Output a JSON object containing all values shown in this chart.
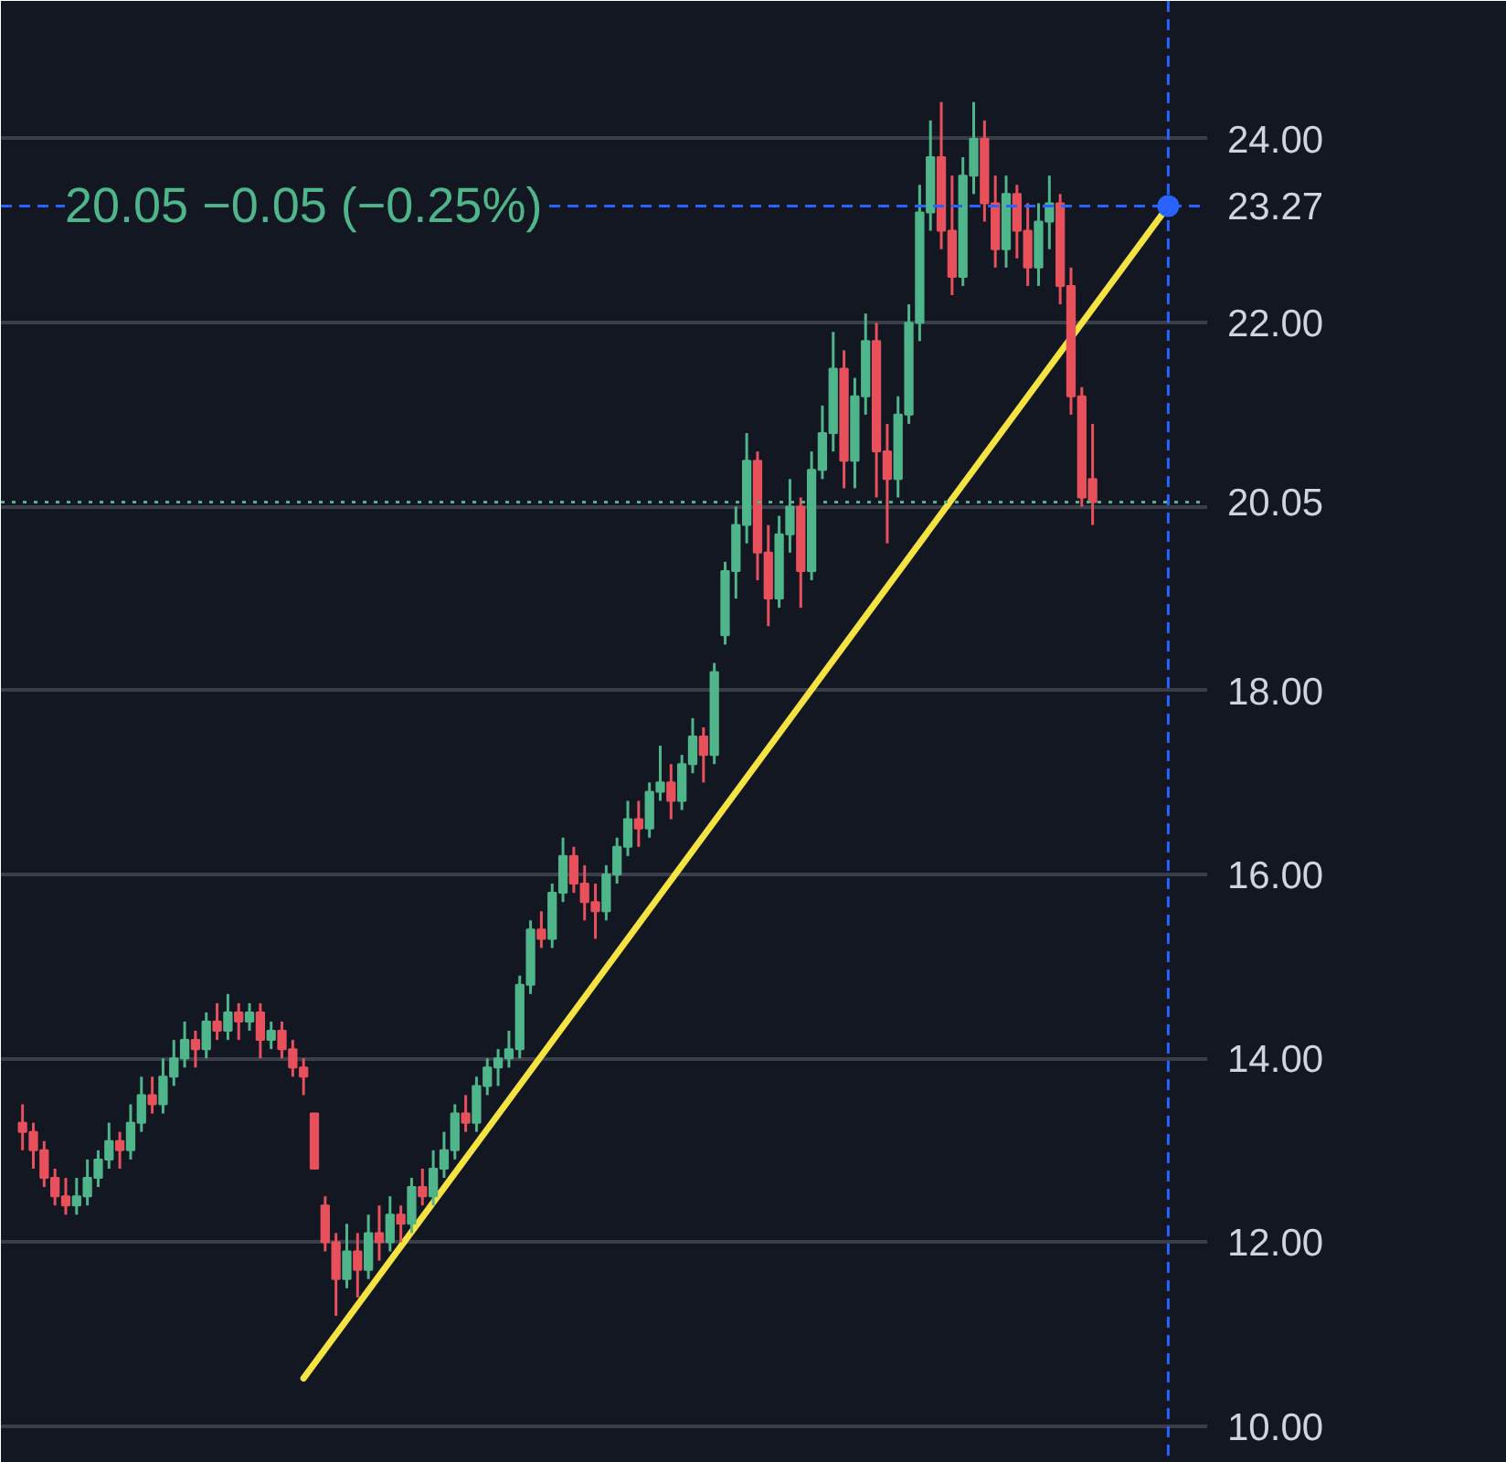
{
  "chart_data": {
    "type": "candlestick",
    "categories": [
      null,
      null,
      null,
      null,
      null,
      null,
      null,
      null,
      null,
      null,
      null,
      null,
      null,
      null,
      null,
      null,
      null,
      null,
      null,
      null,
      null,
      null,
      null,
      null,
      null,
      null,
      null,
      null,
      null,
      null,
      null,
      null,
      null,
      null,
      null,
      null,
      null,
      null,
      null,
      null,
      null,
      null,
      null,
      null,
      null,
      null,
      null,
      null,
      null,
      null,
      null,
      null,
      null,
      null,
      null,
      null,
      null,
      null,
      null,
      null,
      null,
      null,
      null,
      null,
      null,
      null,
      null,
      null,
      null,
      null,
      null,
      null,
      null,
      null,
      null,
      null,
      null,
      null,
      null,
      null,
      null,
      null,
      null,
      null,
      null,
      null,
      null,
      null,
      null,
      null,
      null,
      null,
      null,
      null,
      null,
      null,
      null,
      null,
      null,
      null,
      null,
      null,
      null,
      null,
      null,
      null,
      null,
      null,
      null,
      null
    ],
    "ohlc": [
      [
        13.3,
        13.5,
        13.0,
        13.2
      ],
      [
        13.2,
        13.3,
        12.8,
        13.0
      ],
      [
        13.0,
        13.1,
        12.6,
        12.7
      ],
      [
        12.7,
        12.8,
        12.4,
        12.5
      ],
      [
        12.5,
        12.7,
        12.3,
        12.4
      ],
      [
        12.4,
        12.7,
        12.3,
        12.5
      ],
      [
        12.5,
        12.9,
        12.4,
        12.7
      ],
      [
        12.7,
        13.0,
        12.6,
        12.9
      ],
      [
        12.9,
        13.3,
        12.8,
        13.1
      ],
      [
        13.1,
        13.2,
        12.8,
        13.0
      ],
      [
        13.0,
        13.5,
        12.9,
        13.3
      ],
      [
        13.3,
        13.8,
        13.2,
        13.6
      ],
      [
        13.6,
        13.8,
        13.4,
        13.5
      ],
      [
        13.5,
        14.0,
        13.4,
        13.8
      ],
      [
        13.8,
        14.2,
        13.7,
        14.0
      ],
      [
        14.0,
        14.4,
        13.9,
        14.2
      ],
      [
        14.2,
        14.3,
        13.9,
        14.1
      ],
      [
        14.1,
        14.5,
        14.0,
        14.4
      ],
      [
        14.4,
        14.6,
        14.2,
        14.3
      ],
      [
        14.3,
        14.7,
        14.2,
        14.5
      ],
      [
        14.5,
        14.6,
        14.2,
        14.4
      ],
      [
        14.4,
        14.6,
        14.3,
        14.5
      ],
      [
        14.5,
        14.6,
        14.0,
        14.2
      ],
      [
        14.2,
        14.4,
        14.1,
        14.3
      ],
      [
        14.3,
        14.4,
        14.0,
        14.1
      ],
      [
        14.1,
        14.2,
        13.8,
        13.9
      ],
      [
        13.9,
        14.0,
        13.6,
        13.8
      ],
      [
        13.4,
        13.4,
        12.8,
        12.8
      ],
      [
        12.4,
        12.5,
        11.9,
        12.0
      ],
      [
        12.0,
        12.1,
        11.2,
        11.6
      ],
      [
        11.6,
        12.2,
        11.5,
        11.9
      ],
      [
        11.9,
        12.1,
        11.4,
        11.7
      ],
      [
        11.7,
        12.3,
        11.6,
        12.1
      ],
      [
        12.1,
        12.4,
        11.8,
        12.0
      ],
      [
        12.0,
        12.5,
        11.9,
        12.3
      ],
      [
        12.3,
        12.4,
        12.0,
        12.2
      ],
      [
        12.2,
        12.7,
        12.1,
        12.6
      ],
      [
        12.6,
        12.8,
        12.4,
        12.5
      ],
      [
        12.5,
        13.0,
        12.4,
        12.8
      ],
      [
        12.8,
        13.2,
        12.7,
        13.0
      ],
      [
        13.0,
        13.5,
        12.9,
        13.4
      ],
      [
        13.4,
        13.6,
        13.2,
        13.3
      ],
      [
        13.3,
        13.8,
        13.2,
        13.7
      ],
      [
        13.7,
        14.0,
        13.6,
        13.9
      ],
      [
        13.9,
        14.1,
        13.7,
        14.0
      ],
      [
        14.0,
        14.3,
        13.9,
        14.1
      ],
      [
        14.1,
        14.9,
        14.0,
        14.8
      ],
      [
        14.8,
        15.5,
        14.7,
        15.4
      ],
      [
        15.4,
        15.6,
        15.2,
        15.3
      ],
      [
        15.3,
        15.9,
        15.2,
        15.8
      ],
      [
        15.8,
        16.4,
        15.7,
        16.2
      ],
      [
        16.2,
        16.3,
        15.8,
        15.9
      ],
      [
        15.9,
        16.1,
        15.5,
        15.7
      ],
      [
        15.7,
        15.9,
        15.3,
        15.6
      ],
      [
        15.6,
        16.1,
        15.5,
        16.0
      ],
      [
        16.0,
        16.4,
        15.9,
        16.3
      ],
      [
        16.3,
        16.8,
        16.2,
        16.6
      ],
      [
        16.6,
        16.8,
        16.3,
        16.5
      ],
      [
        16.5,
        17.0,
        16.4,
        16.9
      ],
      [
        16.9,
        17.4,
        16.8,
        17.0
      ],
      [
        17.0,
        17.2,
        16.6,
        16.8
      ],
      [
        16.8,
        17.3,
        16.7,
        17.2
      ],
      [
        17.2,
        17.7,
        17.1,
        17.5
      ],
      [
        17.5,
        17.6,
        17.0,
        17.3
      ],
      [
        17.3,
        18.3,
        17.2,
        18.2
      ],
      [
        18.6,
        19.4,
        18.5,
        19.3
      ],
      [
        19.3,
        20.0,
        19.0,
        19.8
      ],
      [
        19.8,
        20.8,
        19.6,
        20.5
      ],
      [
        20.5,
        20.6,
        19.2,
        19.5
      ],
      [
        19.5,
        19.8,
        18.7,
        19.0
      ],
      [
        19.0,
        19.9,
        18.9,
        19.7
      ],
      [
        19.7,
        20.3,
        19.5,
        20.0
      ],
      [
        20.0,
        20.1,
        18.9,
        19.3
      ],
      [
        19.3,
        20.6,
        19.2,
        20.4
      ],
      [
        20.4,
        21.1,
        20.3,
        20.8
      ],
      [
        20.8,
        21.9,
        20.6,
        21.5
      ],
      [
        21.5,
        21.7,
        20.2,
        20.5
      ],
      [
        20.5,
        21.4,
        20.2,
        21.2
      ],
      [
        21.2,
        22.1,
        21.0,
        21.8
      ],
      [
        21.8,
        22.0,
        20.1,
        20.6
      ],
      [
        20.6,
        20.9,
        19.6,
        20.3
      ],
      [
        20.3,
        21.2,
        20.1,
        21.0
      ],
      [
        21.0,
        22.2,
        20.9,
        22.0
      ],
      [
        22.0,
        23.5,
        21.8,
        23.2
      ],
      [
        23.2,
        24.2,
        23.0,
        23.8
      ],
      [
        23.8,
        24.4,
        22.8,
        23.0
      ],
      [
        23.0,
        23.6,
        22.3,
        22.5
      ],
      [
        22.5,
        23.8,
        22.4,
        23.6
      ],
      [
        23.6,
        24.4,
        23.4,
        24.0
      ],
      [
        24.0,
        24.2,
        23.1,
        23.3
      ],
      [
        23.3,
        23.6,
        22.6,
        22.8
      ],
      [
        22.8,
        23.6,
        22.6,
        23.4
      ],
      [
        23.4,
        23.5,
        22.7,
        23.0
      ],
      [
        23.0,
        23.3,
        22.4,
        22.6
      ],
      [
        22.6,
        23.3,
        22.4,
        23.1
      ],
      [
        23.1,
        23.6,
        22.8,
        23.3
      ],
      [
        23.3,
        23.4,
        22.2,
        22.4
      ],
      [
        22.4,
        22.6,
        21.0,
        21.2
      ],
      [
        21.2,
        21.3,
        20.0,
        20.1
      ],
      [
        20.3,
        20.9,
        19.8,
        20.05
      ],
      null,
      null,
      null,
      null,
      null,
      null,
      null,
      null,
      null,
      null
    ],
    "series": [
      {
        "type": "line",
        "values": [
          null,
          null,
          null,
          null,
          null,
          null,
          null,
          null,
          null,
          null,
          null,
          null,
          null,
          null,
          null,
          null,
          null,
          null,
          null,
          null,
          null,
          null,
          null,
          null,
          null,
          null,
          10.52,
          null,
          null,
          null,
          null,
          null,
          null,
          null,
          null,
          null,
          null,
          null,
          null,
          null,
          null,
          null,
          null,
          null,
          null,
          null,
          null,
          null,
          null,
          null,
          null,
          null,
          null,
          null,
          null,
          null,
          null,
          null,
          null,
          null,
          null,
          null,
          null,
          null,
          null,
          null,
          null,
          null,
          null,
          null,
          null,
          null,
          null,
          null,
          null,
          null,
          null,
          null,
          null,
          null,
          null,
          null,
          null,
          null,
          null,
          null,
          null,
          null,
          null,
          null,
          null,
          null,
          null,
          null,
          null,
          null,
          null,
          null,
          null,
          null,
          null,
          null,
          null,
          null,
          null,
          null,
          23.27,
          null,
          null,
          null
        ],
        "color": "#f5e342"
      }
    ],
    "ylim": [
      9.6,
      25.5
    ],
    "yticks": [
      {
        "value": 10,
        "label": "10.00"
      },
      {
        "value": 12,
        "label": "12.00"
      },
      {
        "value": 14,
        "label": "14.00"
      },
      {
        "value": 16,
        "label": "16.00"
      },
      {
        "value": 18,
        "label": "18.00"
      },
      {
        "value": 20,
        "label": null
      },
      {
        "value": 22,
        "label": "22.00"
      },
      {
        "value": 24,
        "label": "24.00"
      }
    ],
    "ref_lines": [
      {
        "axis": "y",
        "value": 23.27,
        "label": "23.27",
        "color": "#2962ff",
        "line_style": "dashed"
      },
      {
        "axis": "y",
        "value": 20.05,
        "label": "20.05",
        "color": "#4fb58a",
        "line_style": "dotted"
      }
    ],
    "annotations": [
      "20.05 −0.05 (−0.25%)"
    ],
    "grid": "y",
    "tick_labels": "y"
  }
}
